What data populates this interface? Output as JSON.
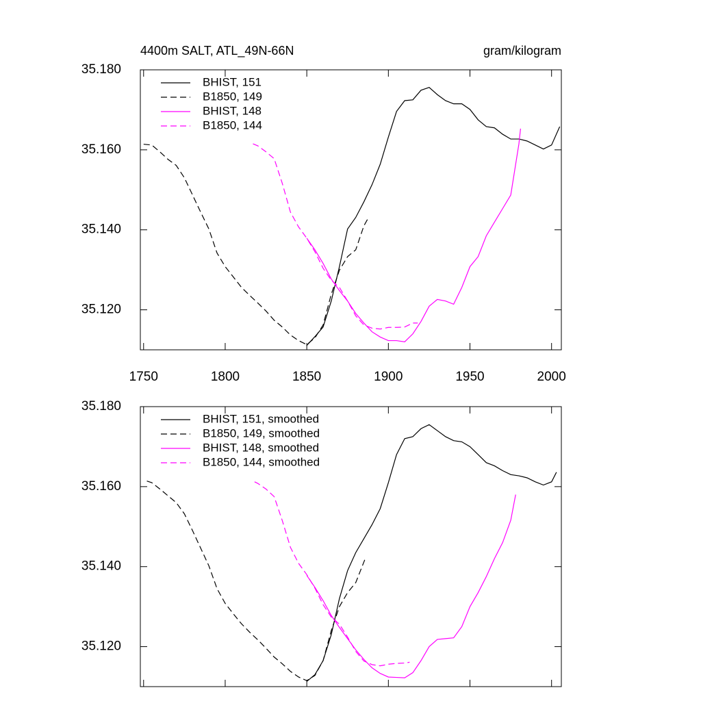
{
  "chart_data": [
    {
      "type": "line",
      "title": "4400m SALT, ATL_49N-66N",
      "units": "gram/kilogram",
      "xlim": [
        1748,
        2006
      ],
      "ylim": [
        35.11,
        35.18
      ],
      "xticks": [
        1750,
        1800,
        1850,
        1900,
        1950,
        2000
      ],
      "yticks": [
        {
          "value": 35.12,
          "label": "35.120"
        },
        {
          "value": 35.14,
          "label": "35.140"
        },
        {
          "value": 35.16,
          "label": "35.160"
        },
        {
          "value": 35.18,
          "label": "35.180"
        }
      ],
      "xtick_labels": true,
      "legend": "upper left",
      "series": [
        {
          "name": "BHIST, 151",
          "color": "#000000",
          "dash": false,
          "x": [
            1850,
            1855,
            1860,
            1865,
            1870,
            1875,
            1880,
            1885,
            1890,
            1895,
            1900,
            1905,
            1910,
            1915,
            1920,
            1925,
            1930,
            1935,
            1940,
            1945,
            1950,
            1955,
            1960,
            1965,
            1970,
            1975,
            1980,
            1985,
            1990,
            1995,
            2000,
            2005
          ],
          "values": [
            35.1111,
            35.1133,
            35.1157,
            35.1222,
            35.1308,
            35.1402,
            35.1431,
            35.147,
            35.1513,
            35.1564,
            35.1632,
            35.1696,
            35.1723,
            35.1725,
            35.1749,
            35.1756,
            35.1738,
            35.1723,
            35.1715,
            35.1715,
            35.1701,
            35.1675,
            35.1658,
            35.1655,
            35.1639,
            35.1627,
            35.1627,
            35.1622,
            35.1612,
            35.1602,
            35.1612,
            35.1658
          ]
        },
        {
          "name": "B1850, 149",
          "color": "#000000",
          "dash": true,
          "x": [
            1750,
            1755,
            1760,
            1765,
            1770,
            1775,
            1780,
            1785,
            1790,
            1795,
            1800,
            1805,
            1810,
            1815,
            1820,
            1825,
            1830,
            1835,
            1840,
            1845,
            1850,
            1855,
            1860,
            1865,
            1870,
            1875,
            1880,
            1885,
            1888
          ],
          "values": [
            35.1614,
            35.1612,
            35.1595,
            35.1576,
            35.1561,
            35.153,
            35.1487,
            35.1444,
            35.1402,
            35.1342,
            35.1308,
            35.1282,
            35.1256,
            35.1236,
            35.1217,
            35.1197,
            35.1174,
            35.1157,
            35.1137,
            35.1123,
            35.1113,
            35.113,
            35.1162,
            35.1239,
            35.1299,
            35.1333,
            35.135,
            35.141,
            35.1432
          ]
        },
        {
          "name": "BHIST, 148",
          "color": "#ff00ff",
          "dash": false,
          "x": [
            1850,
            1855,
            1860,
            1865,
            1870,
            1875,
            1880,
            1885,
            1890,
            1895,
            1900,
            1905,
            1910,
            1915,
            1920,
            1925,
            1930,
            1935,
            1940,
            1945,
            1950,
            1955,
            1960,
            1965,
            1970,
            1975,
            1980,
            1981
          ],
          "values": [
            35.1379,
            35.135,
            35.1316,
            35.1277,
            35.1248,
            35.1222,
            35.1191,
            35.1167,
            35.1145,
            35.1132,
            35.1123,
            35.1123,
            35.112,
            35.114,
            35.1171,
            35.1209,
            35.1226,
            35.1222,
            35.1214,
            35.1256,
            35.1308,
            35.1333,
            35.1385,
            35.1419,
            35.1453,
            35.1487,
            35.1615,
            35.1653
          ]
        },
        {
          "name": "B1850, 144",
          "color": "#ff00ff",
          "dash": true,
          "x": [
            1817,
            1820,
            1825,
            1830,
            1835,
            1840,
            1845,
            1850,
            1855,
            1860,
            1865,
            1870,
            1875,
            1880,
            1885,
            1890,
            1895,
            1900,
            1905,
            1910,
            1915,
            1918
          ],
          "values": [
            35.1615,
            35.161,
            35.1595,
            35.1578,
            35.1516,
            35.1444,
            35.1407,
            35.1379,
            35.1345,
            35.1304,
            35.1274,
            35.1256,
            35.1222,
            35.1185,
            35.1162,
            35.1154,
            35.1152,
            35.1156,
            35.1156,
            35.1157,
            35.1167,
            35.1167
          ]
        }
      ]
    },
    {
      "type": "line",
      "xlim": [
        1748,
        2006
      ],
      "ylim": [
        35.11,
        35.18
      ],
      "xticks": [
        1750,
        1800,
        1850,
        1900,
        1950,
        2000
      ],
      "yticks": [
        {
          "value": 35.12,
          "label": "35.120"
        },
        {
          "value": 35.14,
          "label": "35.140"
        },
        {
          "value": 35.16,
          "label": "35.160"
        },
        {
          "value": 35.18,
          "label": "35.180"
        }
      ],
      "xtick_labels": false,
      "legend": "upper left",
      "series": [
        {
          "name": "BHIST, 151, smoothed",
          "color": "#000000",
          "dash": false,
          "x": [
            1850,
            1855,
            1860,
            1865,
            1870,
            1875,
            1880,
            1885,
            1890,
            1895,
            1900,
            1905,
            1910,
            1915,
            1920,
            1925,
            1930,
            1935,
            1940,
            1945,
            1950,
            1955,
            1960,
            1965,
            1970,
            1975,
            1980,
            1985,
            1990,
            1995,
            2000,
            2003
          ],
          "values": [
            35.1113,
            35.113,
            35.1165,
            35.123,
            35.132,
            35.139,
            35.1435,
            35.147,
            35.1505,
            35.1545,
            35.161,
            35.168,
            35.172,
            35.1725,
            35.1745,
            35.1755,
            35.174,
            35.1725,
            35.1715,
            35.1712,
            35.17,
            35.168,
            35.166,
            35.1652,
            35.164,
            35.163,
            35.1627,
            35.1622,
            35.1612,
            35.1604,
            35.1612,
            35.1636
          ]
        },
        {
          "name": "B1850, 149, smoothed",
          "color": "#000000",
          "dash": true,
          "x": [
            1752,
            1755,
            1760,
            1765,
            1770,
            1775,
            1780,
            1785,
            1790,
            1795,
            1800,
            1805,
            1810,
            1815,
            1820,
            1825,
            1830,
            1835,
            1840,
            1845,
            1850,
            1855,
            1860,
            1865,
            1870,
            1875,
            1880,
            1886
          ],
          "values": [
            35.1614,
            35.161,
            35.1594,
            35.1577,
            35.156,
            35.1532,
            35.149,
            35.1446,
            35.1402,
            35.1345,
            35.1308,
            35.1282,
            35.1257,
            35.1236,
            35.1217,
            35.1196,
            35.1174,
            35.1157,
            35.1138,
            35.1124,
            35.1115,
            35.1128,
            35.1165,
            35.124,
            35.13,
            35.1335,
            35.136,
            35.1422
          ]
        },
        {
          "name": "BHIST, 148, smoothed",
          "color": "#ff00ff",
          "dash": false,
          "x": [
            1850,
            1855,
            1860,
            1865,
            1870,
            1875,
            1880,
            1885,
            1890,
            1895,
            1900,
            1905,
            1910,
            1915,
            1920,
            1925,
            1930,
            1935,
            1940,
            1945,
            1950,
            1955,
            1960,
            1965,
            1970,
            1975,
            1978
          ],
          "values": [
            35.1378,
            35.1348,
            35.1315,
            35.1278,
            35.1248,
            35.122,
            35.1192,
            35.1168,
            35.1147,
            35.1133,
            35.1124,
            35.1123,
            35.1122,
            35.1135,
            35.1165,
            35.12,
            35.1218,
            35.122,
            35.1222,
            35.125,
            35.13,
            35.1335,
            35.1375,
            35.142,
            35.146,
            35.1516,
            35.158
          ]
        },
        {
          "name": "B1850, 144, smoothed",
          "color": "#ff00ff",
          "dash": true,
          "x": [
            1818,
            1820,
            1825,
            1830,
            1835,
            1840,
            1845,
            1850,
            1855,
            1860,
            1865,
            1870,
            1875,
            1880,
            1885,
            1890,
            1895,
            1900,
            1905,
            1910,
            1913
          ],
          "values": [
            35.1612,
            35.1608,
            35.1594,
            35.1575,
            35.1515,
            35.1448,
            35.1408,
            35.138,
            35.1346,
            35.1305,
            35.1274,
            35.1256,
            35.1224,
            35.1188,
            35.1164,
            35.1155,
            35.1152,
            35.1156,
            35.1158,
            35.1159,
            35.1161
          ]
        }
      ]
    }
  ]
}
